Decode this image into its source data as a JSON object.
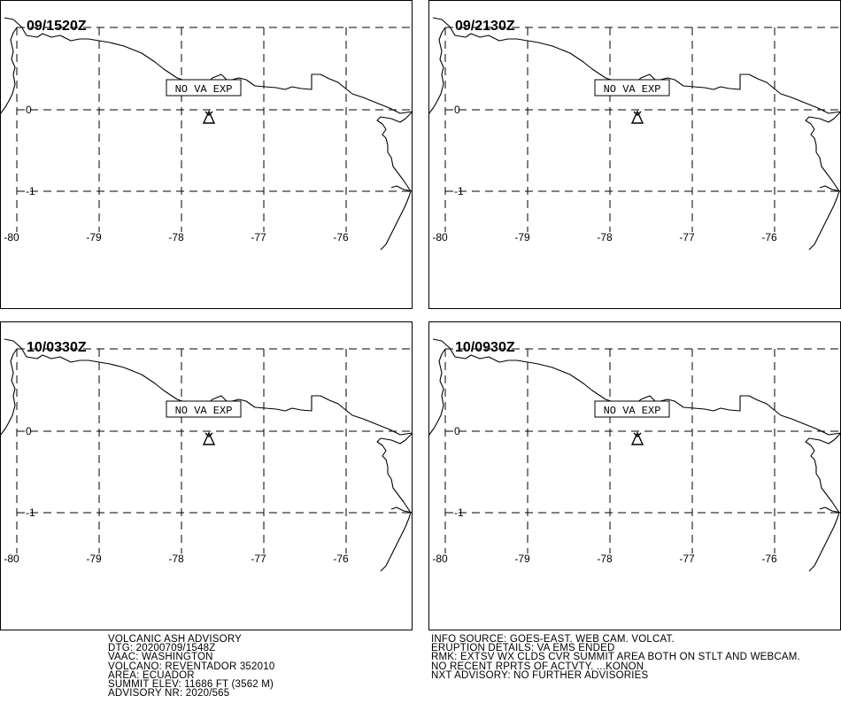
{
  "panels": [
    {
      "time": "09/1520Z",
      "label": "NO VA EXP"
    },
    {
      "time": "09/2130Z",
      "label": "NO VA EXP"
    },
    {
      "time": "10/0330Z",
      "label": "NO VA EXP"
    },
    {
      "time": "10/0930Z",
      "label": "NO VA EXP"
    }
  ],
  "map": {
    "lon_labels": [
      "-80",
      "-79",
      "-78",
      "-77",
      "-76"
    ],
    "lat_labels": [
      "0",
      "-1"
    ],
    "volcano_icon": "volcano-triangle-icon"
  },
  "advisory_left": [
    "VOLCANIC ASH ADVISORY",
    "DTG: 20200709/1548Z",
    "VAAC: WASHINGTON",
    "VOLCANO: REVENTADOR 352010",
    "AREA: ECUADOR",
    "SUMMIT ELEV: 11686 FT (3562 M)",
    "ADVISORY NR: 2020/565"
  ],
  "advisory_right": [
    "INFO SOURCE: GOES-EAST. WEB CAM. VOLCAT.",
    "ERUPTION DETAILS: VA EMS ENDED",
    "RMK: EXTSV WX CLDS CVR SUMMIT AREA BOTH ON STLT AND WEBCAM.",
    "NO RECENT RPRTS OF ACTVTY. ...KONON",
    "NXT ADVISORY: NO FURTHER ADVISORIES"
  ]
}
